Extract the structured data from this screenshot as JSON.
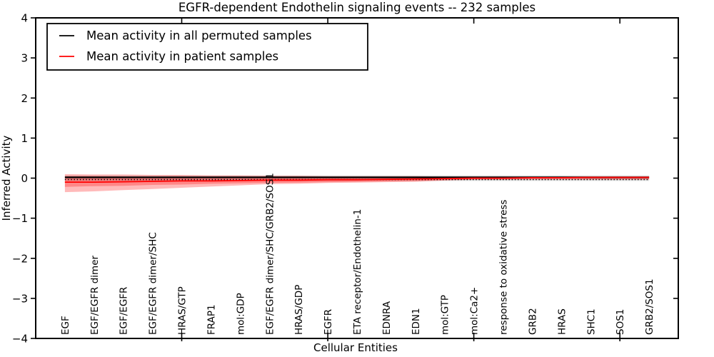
{
  "figure": {
    "background": "#ffffff"
  },
  "legend": {
    "items": [
      {
        "label": "Mean activity in all permuted samples",
        "color": "#000000"
      },
      {
        "label": "Mean activity in patient samples",
        "color": "#ff0000"
      }
    ]
  },
  "chart_data": {
    "type": "line",
    "title": "EGFR-dependent Endothelin signaling events -- 232 samples",
    "xlabel": "Cellular Entities",
    "ylabel": "Inferred Activity",
    "ylim": [
      -4,
      4
    ],
    "ytick_labels": [
      "4",
      "3",
      "2",
      "1",
      "0",
      "−1",
      "−2",
      "−3",
      "−4"
    ],
    "xtick_positions": [
      5,
      10,
      15,
      20
    ],
    "grid": false,
    "legend_position": "upper left",
    "categories": [
      "EGF",
      "EGF/EGFR dimer",
      "EGF/EGFR",
      "EGF/EGFR dimer/SHC",
      "HRAS/GTP",
      "FRAP1",
      "mol:GDP",
      "EGF/EGFR dimer/SHC/GRB2/SOS1",
      "HRAS/GDP",
      "EGFR",
      "ETA receptor/Endothelin-1",
      "EDNRA",
      "EDN1",
      "mol:GTP",
      "mol:Ca2+",
      "response to oxidative stress",
      "GRB2",
      "HRAS",
      "SHC1",
      "SOS1",
      "GRB2/SOS1"
    ],
    "series": [
      {
        "name": "Mean activity in all permuted samples",
        "color": "#000000",
        "values": [
          0.02,
          0.02,
          0.02,
          0.02,
          0.02,
          0.02,
          0.02,
          0.02,
          0.02,
          0.02,
          0.02,
          0.02,
          0.02,
          0.02,
          0.02,
          0.02,
          0.02,
          0.02,
          0.02,
          0.02,
          0.02
        ]
      },
      {
        "name": "Mean activity in patient samples",
        "color": "#ff0000",
        "values": [
          -0.1,
          -0.1,
          -0.09,
          -0.08,
          -0.07,
          -0.07,
          -0.06,
          -0.05,
          -0.05,
          -0.04,
          -0.04,
          -0.03,
          -0.02,
          -0.01,
          0.0,
          0.0,
          0.01,
          0.01,
          0.02,
          0.02,
          0.02
        ]
      }
    ],
    "bands": [
      {
        "name": "permuted-std-band",
        "color": "rgba(0,0,0,0.13)",
        "hi": [
          0.07,
          0.07,
          0.07,
          0.07,
          0.07,
          0.07,
          0.07,
          0.07,
          0.07,
          0.07,
          0.07,
          0.07,
          0.07,
          0.07,
          0.07,
          0.07,
          0.07,
          0.07,
          0.07,
          0.07,
          0.07
        ],
        "lo": [
          -0.07,
          -0.07,
          -0.07,
          -0.07,
          -0.07,
          -0.07,
          -0.07,
          -0.07,
          -0.07,
          -0.07,
          -0.07,
          -0.07,
          -0.07,
          -0.07,
          -0.07,
          -0.07,
          -0.07,
          -0.07,
          -0.07,
          -0.07,
          -0.07
        ]
      },
      {
        "name": "patient-std-band-outer",
        "color": "rgba(255,0,0,0.27)",
        "hi": [
          0.1,
          0.09,
          0.09,
          0.08,
          0.08,
          0.07,
          0.07,
          0.06,
          0.06,
          0.05,
          0.05,
          0.05,
          0.05,
          0.04,
          0.04,
          0.04,
          0.04,
          0.04,
          0.04,
          0.04,
          0.04
        ],
        "lo": [
          -0.35,
          -0.33,
          -0.3,
          -0.27,
          -0.24,
          -0.21,
          -0.18,
          -0.15,
          -0.14,
          -0.12,
          -0.11,
          -0.1,
          -0.09,
          -0.06,
          -0.04,
          -0.04,
          -0.04,
          -0.04,
          -0.04,
          -0.04,
          -0.04
        ]
      },
      {
        "name": "patient-std-band-inner",
        "color": "rgba(255,0,0,0.27)",
        "hi": [
          0.05,
          0.05,
          0.04,
          0.04,
          0.04,
          0.04,
          0.04,
          0.03,
          0.03,
          0.03,
          0.03,
          0.03,
          0.03,
          0.03,
          0.02,
          0.02,
          0.02,
          0.02,
          0.02,
          0.02,
          0.02
        ],
        "lo": [
          -0.22,
          -0.2,
          -0.19,
          -0.17,
          -0.16,
          -0.14,
          -0.13,
          -0.12,
          -0.11,
          -0.1,
          -0.09,
          -0.08,
          -0.07,
          -0.05,
          -0.03,
          -0.03,
          -0.02,
          -0.02,
          -0.02,
          -0.02,
          -0.02
        ]
      }
    ],
    "reference_line": {
      "value": -0.035,
      "style": "dotted",
      "color": "#000000"
    }
  }
}
